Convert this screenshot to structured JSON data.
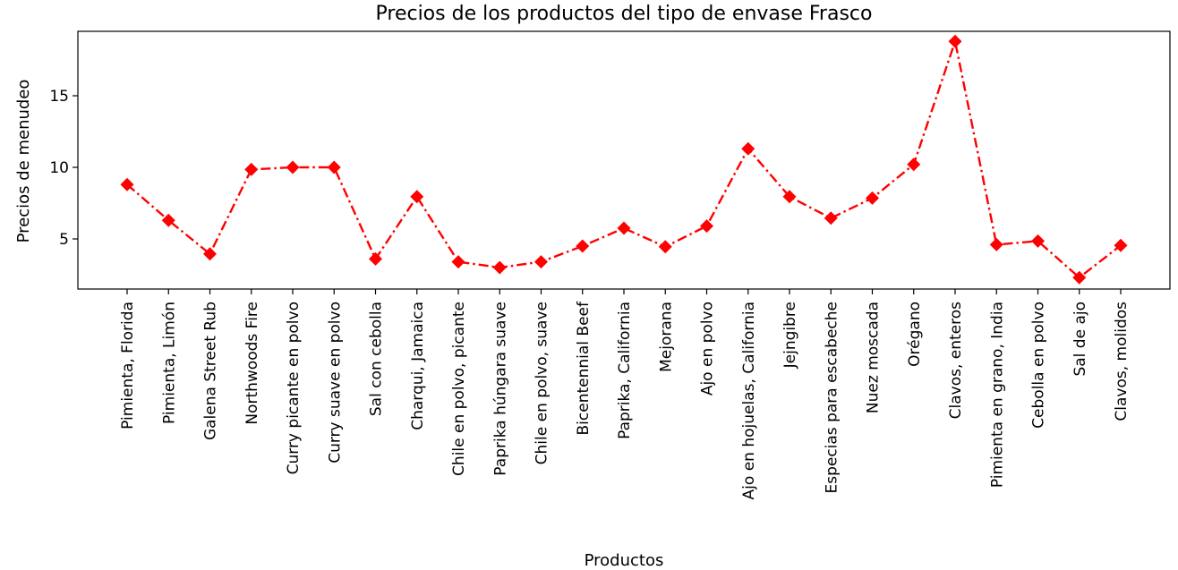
{
  "chart_data": {
    "type": "line",
    "title": "Precios de los productos del tipo de envase Frasco",
    "xlabel": "Productos",
    "ylabel": "Precios de menudeo",
    "categories": [
      "Pimienta, Florida",
      "Pimienta, Limón",
      "Galena Street Rub",
      "Northwoods Fire",
      "Curry picante en polvo",
      "Curry suave en polvo",
      "Sal con cebolla",
      "Charqui, Jamaica",
      "Chile en polvo, picante",
      "Paprika húngara suave",
      "Chile en polvo, suave",
      "Bicentennial Beef",
      "Paprika, California",
      "Mejorana",
      "Ajo en polvo",
      "Ajo en hojuelas, California",
      "Jejngibre",
      "Especias para escabeche",
      "Nuez moscada",
      "Orégano",
      "Clavos, enteros",
      "Pimienta en grano, India",
      "Cebolla en polvo",
      "Sal de ajo",
      "Clavos, molidos"
    ],
    "series": [
      {
        "values": [
          8.8,
          6.3,
          3.95,
          9.85,
          10.0,
          10.0,
          3.6,
          7.95,
          3.4,
          3.0,
          3.4,
          4.5,
          5.75,
          4.45,
          5.9,
          11.3,
          7.95,
          6.45,
          7.85,
          10.2,
          18.8,
          4.6,
          4.85,
          2.3,
          4.55
        ]
      }
    ],
    "ylim": [
      1.5,
      19.5
    ],
    "yticks": [
      5,
      10,
      15
    ],
    "grid": false,
    "line_style": "dashdot",
    "marker": "diamond",
    "color": "#ff0000"
  }
}
